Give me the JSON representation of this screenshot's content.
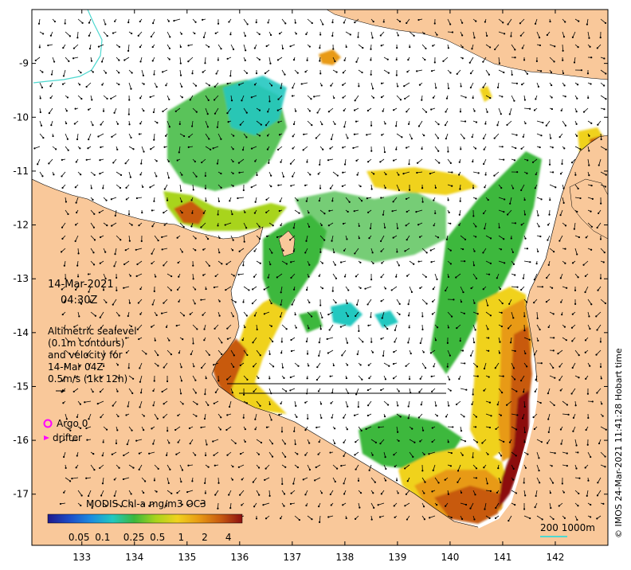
{
  "map": {
    "lon_ticks": [
      "133",
      "134",
      "135",
      "136",
      "137",
      "138",
      "139",
      "140",
      "141",
      "142"
    ],
    "lat_ticks": [
      "-9",
      "-10",
      "-11",
      "-12",
      "-13",
      "-14",
      "-15",
      "-16",
      "-17"
    ],
    "lon_range": [
      132.05,
      143.0
    ],
    "lat_range": [
      -17.95,
      -8.0
    ],
    "land_color": "#f9c89a",
    "bathymetry_color": "#4ed8d0"
  },
  "annotations": {
    "date": "14-Mar-2021",
    "time": "04:30Z",
    "sealevel_lines": [
      "Altimetric sealevel",
      "(0.1m contours)",
      "and velocity for",
      "14-Mar 04Z",
      "0.5m/s (1kt 12h)"
    ],
    "argo_label": "Argo 0",
    "drifter_label": "drifter",
    "argo_color": "#ff00ff",
    "drifter_color": "#ff00ff"
  },
  "colorbar": {
    "title": "MODIS Chl-a mg/m3 OC3",
    "tick_labels": [
      "0.05",
      "0.1",
      "0.25",
      "0.5",
      "1",
      "2",
      "4"
    ],
    "colors": [
      "#1e1a8c",
      "#1c4cc8",
      "#1c8ce0",
      "#22c8c0",
      "#3cb83c",
      "#a8d41c",
      "#f0d21e",
      "#e89a14",
      "#c85a10",
      "#8c1010"
    ]
  },
  "scale_bar": {
    "label": "200  1000m",
    "color": "#4ed8d0"
  },
  "credit": "© IMOS 24-Mar-2021 11:41:28 Hobart time"
}
